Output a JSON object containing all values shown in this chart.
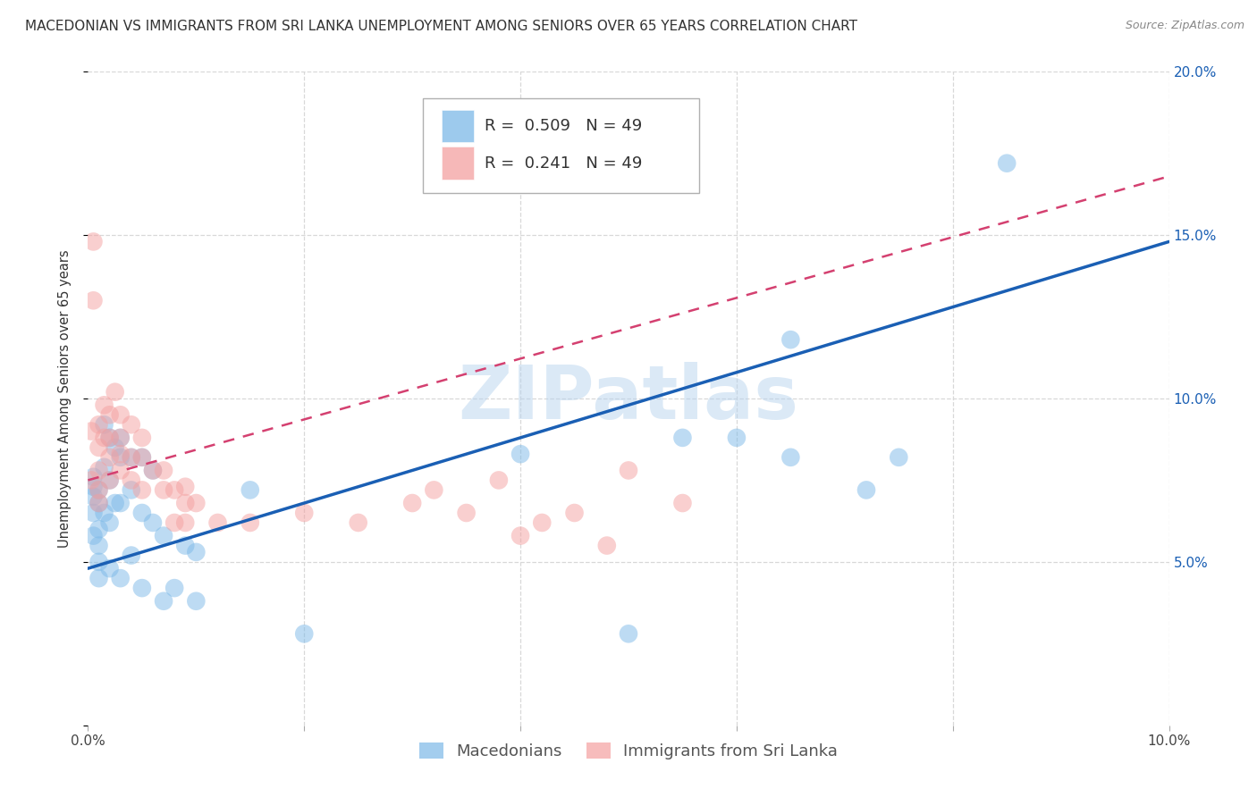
{
  "title": "MACEDONIAN VS IMMIGRANTS FROM SRI LANKA UNEMPLOYMENT AMONG SENIORS OVER 65 YEARS CORRELATION CHART",
  "source": "Source: ZipAtlas.com",
  "ylabel": "Unemployment Among Seniors over 65 years",
  "xlim": [
    0.0,
    0.1
  ],
  "ylim": [
    0.0,
    0.2
  ],
  "macedonian_color": "#7cb9e8",
  "srilanka_color": "#f4a0a0",
  "macedonian_R": 0.509,
  "macedonian_N": 49,
  "srilanka_R": 0.241,
  "srilanka_N": 49,
  "legend_entries": [
    "Macedonians",
    "Immigrants from Sri Lanka"
  ],
  "watermark": "ZIPatlas",
  "macedonian_x": [
    0.0005,
    0.0005,
    0.0005,
    0.0005,
    0.0005,
    0.001,
    0.001,
    0.001,
    0.001,
    0.001,
    0.001,
    0.0015,
    0.0015,
    0.0015,
    0.002,
    0.002,
    0.002,
    0.002,
    0.0025,
    0.0025,
    0.003,
    0.003,
    0.003,
    0.003,
    0.004,
    0.004,
    0.004,
    0.005,
    0.005,
    0.005,
    0.006,
    0.006,
    0.007,
    0.007,
    0.008,
    0.009,
    0.01,
    0.01,
    0.015,
    0.02,
    0.04,
    0.05,
    0.055,
    0.06,
    0.065,
    0.065,
    0.072,
    0.075,
    0.085
  ],
  "macedonian_y": [
    0.065,
    0.07,
    0.073,
    0.076,
    0.058,
    0.068,
    0.072,
    0.06,
    0.055,
    0.05,
    0.045,
    0.092,
    0.079,
    0.065,
    0.088,
    0.075,
    0.062,
    0.048,
    0.085,
    0.068,
    0.088,
    0.082,
    0.068,
    0.045,
    0.082,
    0.072,
    0.052,
    0.082,
    0.065,
    0.042,
    0.078,
    0.062,
    0.058,
    0.038,
    0.042,
    0.055,
    0.053,
    0.038,
    0.072,
    0.028,
    0.083,
    0.028,
    0.088,
    0.088,
    0.082,
    0.118,
    0.072,
    0.082,
    0.172
  ],
  "srilanka_x": [
    0.0003,
    0.0003,
    0.0005,
    0.0005,
    0.001,
    0.001,
    0.001,
    0.001,
    0.001,
    0.0015,
    0.0015,
    0.002,
    0.002,
    0.002,
    0.002,
    0.0025,
    0.003,
    0.003,
    0.003,
    0.003,
    0.004,
    0.004,
    0.004,
    0.005,
    0.005,
    0.005,
    0.006,
    0.007,
    0.007,
    0.008,
    0.008,
    0.009,
    0.009,
    0.009,
    0.01,
    0.012,
    0.015,
    0.02,
    0.025,
    0.03,
    0.032,
    0.035,
    0.038,
    0.04,
    0.042,
    0.045,
    0.048,
    0.05,
    0.055
  ],
  "srilanka_y": [
    0.09,
    0.075,
    0.13,
    0.148,
    0.068,
    0.072,
    0.078,
    0.085,
    0.092,
    0.088,
    0.098,
    0.075,
    0.082,
    0.088,
    0.095,
    0.102,
    0.078,
    0.083,
    0.088,
    0.095,
    0.075,
    0.082,
    0.092,
    0.072,
    0.082,
    0.088,
    0.078,
    0.072,
    0.078,
    0.062,
    0.072,
    0.062,
    0.068,
    0.073,
    0.068,
    0.062,
    0.062,
    0.065,
    0.062,
    0.068,
    0.072,
    0.065,
    0.075,
    0.058,
    0.062,
    0.065,
    0.055,
    0.078,
    0.068
  ],
  "blue_line": {
    "x0": 0.0,
    "y0": 0.048,
    "x1": 0.1,
    "y1": 0.148
  },
  "pink_dashed_line": {
    "x0": 0.0,
    "y0": 0.075,
    "x1": 0.1,
    "y1": 0.168
  },
  "background_color": "#ffffff",
  "grid_color": "#d8d8d8",
  "title_fontsize": 11,
  "axis_label_fontsize": 10.5,
  "tick_fontsize": 11,
  "legend_fontsize": 13
}
